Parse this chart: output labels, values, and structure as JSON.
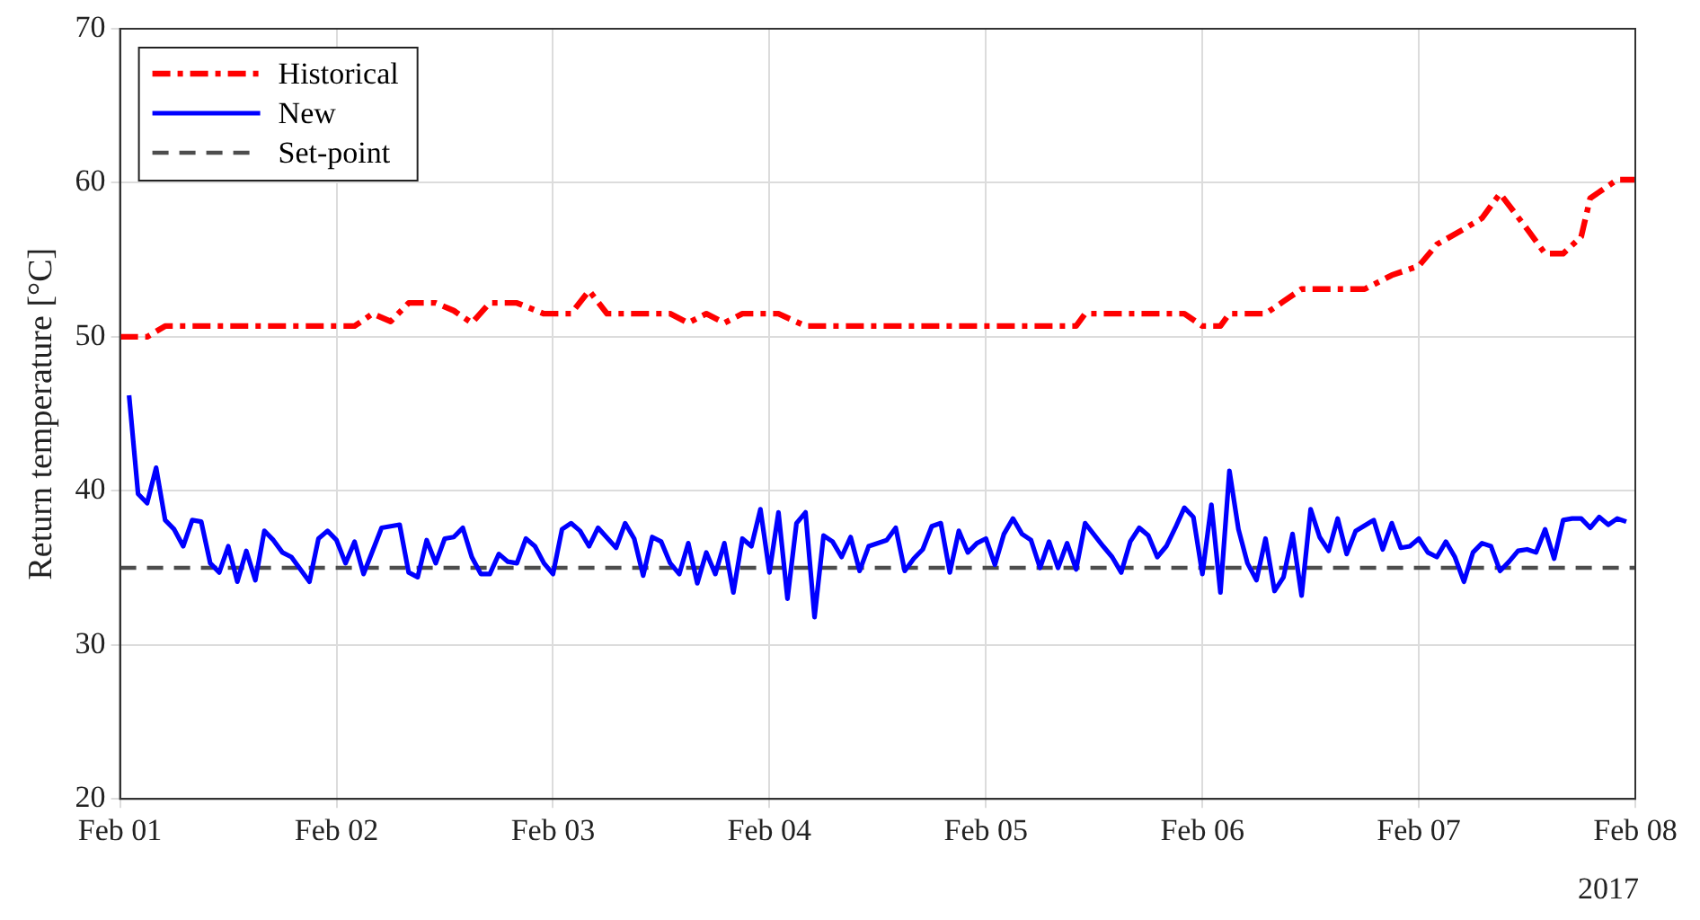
{
  "chart_data": {
    "type": "line",
    "ylabel": "Return temperature [°C]",
    "xlim": [
      "2017-02-01T00:00",
      "2017-02-08T00:00"
    ],
    "xticks": [
      {
        "value": "2017-02-01",
        "label": "Feb 01"
      },
      {
        "value": "2017-02-02",
        "label": "Feb 02"
      },
      {
        "value": "2017-02-03",
        "label": "Feb 03"
      },
      {
        "value": "2017-02-04",
        "label": "Feb 04"
      },
      {
        "value": "2017-02-05",
        "label": "Feb 05"
      },
      {
        "value": "2017-02-06",
        "label": "Feb 06"
      },
      {
        "value": "2017-02-07",
        "label": "Feb 07"
      },
      {
        "value": "2017-02-08",
        "label": "Feb 08"
      }
    ],
    "ylim": [
      20,
      70
    ],
    "yticks": [
      20,
      30,
      40,
      50,
      60,
      70
    ],
    "grid": true,
    "legend": "top left",
    "marker": "none",
    "annotations": [
      "2017"
    ],
    "series": [
      {
        "name": "Historical",
        "color": "#ff0000",
        "line_style": "dashdot",
        "x": [
          "2017-02-01T00:00",
          "2017-02-01T03:00",
          "2017-02-01T05:00",
          "2017-02-02T02:00",
          "2017-02-02T04:00",
          "2017-02-02T06:00",
          "2017-02-02T08:00",
          "2017-02-02T11:00",
          "2017-02-02T13:00",
          "2017-02-02T15:00",
          "2017-02-02T17:00",
          "2017-02-02T20:00",
          "2017-02-02T23:00",
          "2017-02-03T02:00",
          "2017-02-03T04:00",
          "2017-02-03T06:00",
          "2017-02-03T13:00",
          "2017-02-03T15:00",
          "2017-02-03T17:00",
          "2017-02-03T19:00",
          "2017-02-03T21:00",
          "2017-02-04T01:00",
          "2017-02-04T04:00",
          "2017-02-05T10:00",
          "2017-02-05T11:00",
          "2017-02-05T22:00",
          "2017-02-06T00:00",
          "2017-02-06T02:00",
          "2017-02-06T03:00",
          "2017-02-06T07:00",
          "2017-02-06T09:00",
          "2017-02-06T11:00",
          "2017-02-06T18:00",
          "2017-02-06T21:00",
          "2017-02-07T00:00",
          "2017-02-07T02:00",
          "2017-02-07T05:00",
          "2017-02-07T07:00",
          "2017-02-07T09:00",
          "2017-02-07T12:00",
          "2017-02-07T14:00",
          "2017-02-07T16:00",
          "2017-02-07T18:00",
          "2017-02-07T19:00",
          "2017-02-07T22:00",
          "2017-02-08T00:00"
        ],
        "values": [
          50.0,
          50.0,
          50.7,
          50.7,
          51.5,
          51.0,
          52.2,
          52.2,
          51.7,
          50.9,
          52.2,
          52.2,
          51.5,
          51.5,
          53.0,
          51.5,
          51.5,
          50.9,
          51.5,
          50.9,
          51.5,
          51.5,
          50.7,
          50.7,
          51.5,
          51.5,
          50.7,
          50.7,
          51.5,
          51.5,
          52.3,
          53.1,
          53.1,
          54.0,
          54.6,
          56.0,
          57.0,
          57.7,
          59.3,
          57.0,
          55.4,
          55.4,
          56.5,
          59.0,
          60.2,
          60.2
        ]
      },
      {
        "name": "New",
        "color": "#0000ff",
        "line_style": "solid",
        "x": [
          "2017-02-01T01:00",
          "2017-02-01T02:00",
          "2017-02-01T03:00",
          "2017-02-01T04:00",
          "2017-02-01T05:00",
          "2017-02-01T06:00",
          "2017-02-01T07:00",
          "2017-02-01T08:00",
          "2017-02-01T09:00",
          "2017-02-01T10:00",
          "2017-02-01T11:00",
          "2017-02-01T12:00",
          "2017-02-01T13:00",
          "2017-02-01T14:00",
          "2017-02-01T15:00",
          "2017-02-01T16:00",
          "2017-02-01T17:00",
          "2017-02-01T18:00",
          "2017-02-01T19:00",
          "2017-02-01T20:00",
          "2017-02-01T21:00",
          "2017-02-01T22:00",
          "2017-02-01T23:00",
          "2017-02-02T00:00",
          "2017-02-02T01:00",
          "2017-02-02T02:00",
          "2017-02-02T03:00",
          "2017-02-02T04:00",
          "2017-02-02T05:00",
          "2017-02-02T07:00",
          "2017-02-02T08:00",
          "2017-02-02T09:00",
          "2017-02-02T10:00",
          "2017-02-02T11:00",
          "2017-02-02T12:00",
          "2017-02-02T13:00",
          "2017-02-02T14:00",
          "2017-02-02T15:00",
          "2017-02-02T16:00",
          "2017-02-02T17:00",
          "2017-02-02T18:00",
          "2017-02-02T19:00",
          "2017-02-02T20:00",
          "2017-02-02T21:00",
          "2017-02-02T22:00",
          "2017-02-02T23:00",
          "2017-02-03T00:00",
          "2017-02-03T01:00",
          "2017-02-03T02:00",
          "2017-02-03T03:00",
          "2017-02-03T04:00",
          "2017-02-03T05:00",
          "2017-02-03T07:00",
          "2017-02-03T08:00",
          "2017-02-03T09:00",
          "2017-02-03T10:00",
          "2017-02-03T11:00",
          "2017-02-03T12:00",
          "2017-02-03T13:00",
          "2017-02-03T14:00",
          "2017-02-03T15:00",
          "2017-02-03T16:00",
          "2017-02-03T17:00",
          "2017-02-03T18:00",
          "2017-02-03T19:00",
          "2017-02-03T20:00",
          "2017-02-03T21:00",
          "2017-02-03T22:00",
          "2017-02-03T23:00",
          "2017-02-04T00:00",
          "2017-02-04T01:00",
          "2017-02-04T02:00",
          "2017-02-04T03:00",
          "2017-02-04T04:00",
          "2017-02-04T05:00",
          "2017-02-04T06:00",
          "2017-02-04T07:00",
          "2017-02-04T08:00",
          "2017-02-04T09:00",
          "2017-02-04T10:00",
          "2017-02-04T11:00",
          "2017-02-04T13:00",
          "2017-02-04T14:00",
          "2017-02-04T15:00",
          "2017-02-04T16:00",
          "2017-02-04T17:00",
          "2017-02-04T18:00",
          "2017-02-04T19:00",
          "2017-02-04T20:00",
          "2017-02-04T21:00",
          "2017-02-04T22:00",
          "2017-02-04T23:00",
          "2017-02-05T00:00",
          "2017-02-05T01:00",
          "2017-02-05T02:00",
          "2017-02-05T03:00",
          "2017-02-05T04:00",
          "2017-02-05T05:00",
          "2017-02-05T06:00",
          "2017-02-05T07:00",
          "2017-02-05T08:00",
          "2017-02-05T09:00",
          "2017-02-05T10:00",
          "2017-02-05T11:00",
          "2017-02-05T13:00",
          "2017-02-05T14:00",
          "2017-02-05T15:00",
          "2017-02-05T16:00",
          "2017-02-05T17:00",
          "2017-02-05T18:00",
          "2017-02-05T19:00",
          "2017-02-05T20:00",
          "2017-02-05T21:00",
          "2017-02-05T22:00",
          "2017-02-05T23:00",
          "2017-02-06T00:00",
          "2017-02-06T01:00",
          "2017-02-06T02:00",
          "2017-02-06T03:00",
          "2017-02-06T04:00",
          "2017-02-06T05:00",
          "2017-02-06T06:00",
          "2017-02-06T07:00",
          "2017-02-06T08:00",
          "2017-02-06T09:00",
          "2017-02-06T10:00",
          "2017-02-06T11:00",
          "2017-02-06T12:00",
          "2017-02-06T13:00",
          "2017-02-06T14:00",
          "2017-02-06T15:00",
          "2017-02-06T16:00",
          "2017-02-06T17:00",
          "2017-02-06T19:00",
          "2017-02-06T20:00",
          "2017-02-06T21:00",
          "2017-02-06T22:00",
          "2017-02-06T23:00",
          "2017-02-07T00:00",
          "2017-02-07T01:00",
          "2017-02-07T02:00",
          "2017-02-07T03:00",
          "2017-02-07T04:00",
          "2017-02-07T05:00",
          "2017-02-07T06:00",
          "2017-02-07T07:00",
          "2017-02-07T08:00",
          "2017-02-07T09:00",
          "2017-02-07T10:00",
          "2017-02-07T11:00",
          "2017-02-07T12:00",
          "2017-02-07T13:00",
          "2017-02-07T14:00",
          "2017-02-07T15:00",
          "2017-02-07T16:00",
          "2017-02-07T17:00",
          "2017-02-07T18:00",
          "2017-02-07T19:00",
          "2017-02-07T20:00",
          "2017-02-07T21:00",
          "2017-02-07T22:00",
          "2017-02-07T23:00"
        ],
        "values": [
          46.2,
          39.8,
          39.2,
          41.5,
          38.1,
          37.5,
          36.4,
          38.1,
          38.0,
          35.3,
          34.7,
          36.4,
          34.1,
          36.1,
          34.2,
          37.4,
          36.8,
          36.0,
          35.7,
          34.9,
          34.1,
          36.9,
          37.4,
          36.8,
          35.3,
          36.7,
          34.6,
          36.1,
          37.6,
          37.8,
          34.7,
          34.4,
          36.8,
          35.3,
          36.9,
          37.0,
          37.6,
          35.7,
          34.6,
          34.6,
          35.9,
          35.4,
          35.3,
          36.9,
          36.4,
          35.3,
          34.6,
          37.5,
          37.9,
          37.4,
          36.4,
          37.6,
          36.3,
          37.9,
          36.9,
          34.5,
          37.0,
          36.7,
          35.3,
          34.6,
          36.6,
          34.0,
          36.0,
          34.6,
          36.6,
          33.4,
          36.9,
          36.4,
          38.8,
          34.7,
          38.6,
          33.0,
          37.9,
          38.6,
          31.8,
          37.1,
          36.7,
          35.7,
          37.0,
          34.8,
          36.4,
          36.8,
          37.6,
          34.8,
          35.6,
          36.2,
          37.7,
          37.9,
          34.7,
          37.4,
          36.0,
          36.6,
          36.9,
          35.2,
          37.2,
          38.2,
          37.2,
          36.8,
          35.0,
          36.7,
          35.0,
          36.6,
          34.9,
          37.9,
          36.4,
          35.7,
          34.7,
          36.7,
          37.6,
          37.1,
          35.7,
          36.4,
          37.6,
          38.9,
          38.3,
          34.6,
          39.1,
          33.4,
          41.3,
          37.5,
          35.3,
          34.2,
          36.9,
          33.5,
          34.4,
          37.2,
          33.2,
          38.8,
          37.0,
          36.1,
          38.2,
          35.9,
          37.4,
          38.1,
          36.2,
          37.9,
          36.3,
          36.4,
          36.9,
          36.0,
          35.7,
          36.7,
          35.7,
          34.1,
          36.0,
          36.6,
          36.4,
          34.8,
          35.4,
          36.1,
          36.2,
          36.0,
          37.5,
          35.6,
          38.1,
          38.2,
          38.2,
          37.6,
          38.3,
          37.8,
          38.2,
          38.0
        ]
      },
      {
        "name": "Set-point",
        "color": "#4d4d4d",
        "line_style": "dashed",
        "x": [
          "2017-02-01T00:00",
          "2017-02-08T00:00"
        ],
        "values": [
          35,
          35
        ]
      }
    ]
  }
}
